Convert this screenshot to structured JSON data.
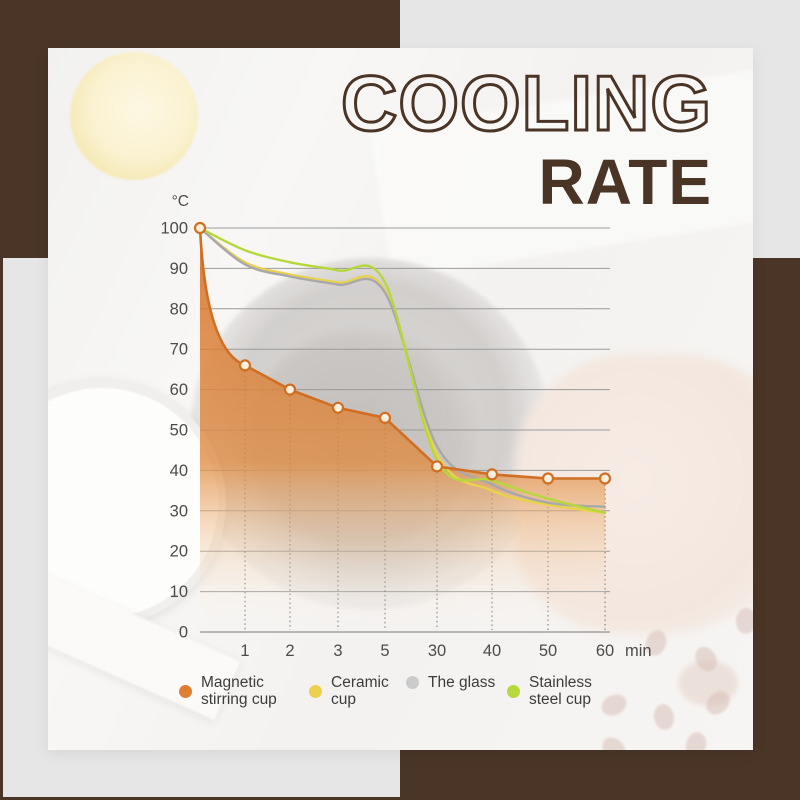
{
  "frame": {
    "background_color": "#e6e6e6",
    "accent_brown": "#4a3526",
    "card_background": "#f7f6f4"
  },
  "title": {
    "line1": "COOLING",
    "line2": "RATE",
    "color": "#4a3426"
  },
  "chart_data": {
    "type": "line",
    "title": "Cooling Rate",
    "grid": true,
    "legend_position": "bottom",
    "y_axis": {
      "unit_label": "°C",
      "min": 0,
      "max": 100,
      "step": 10,
      "tick_labels": [
        "0",
        "10",
        "20",
        "30",
        "40",
        "50",
        "60",
        "70",
        "80",
        "90",
        "100"
      ]
    },
    "x_axis": {
      "tick_labels": [
        "1",
        "2",
        "3",
        "5",
        "30",
        "40",
        "50",
        "60"
      ],
      "unit_label": "min"
    },
    "time_points_min": [
      0,
      1,
      2,
      3,
      5,
      30,
      40,
      50,
      60
    ],
    "series": [
      {
        "name": "Magnetic stirring cup",
        "color": "#d06f24",
        "marker": true,
        "marker_fill": "#faf0dd",
        "area": true,
        "smooth": false,
        "values": [
          100,
          66,
          60,
          55.5,
          53,
          41,
          39,
          38,
          38
        ]
      },
      {
        "name": "Ceramic cup",
        "color": "#e8d24c",
        "marker": false,
        "area": false,
        "smooth": true,
        "values": [
          100,
          91.5,
          88.5,
          86.5,
          84.5,
          44,
          35,
          31.5,
          29.5
        ]
      },
      {
        "name": "The glass",
        "color": "#a8a8ac",
        "marker": false,
        "area": false,
        "smooth": true,
        "values": [
          100,
          91,
          88,
          86,
          84,
          46,
          36.5,
          32,
          31
        ]
      },
      {
        "name": "Stainless steel cup",
        "color": "#b7d83c",
        "marker": false,
        "area": false,
        "smooth": true,
        "values": [
          100,
          94.5,
          91.5,
          89.5,
          86.5,
          42.5,
          37.5,
          33,
          29.5
        ]
      }
    ]
  },
  "legend": {
    "items": [
      {
        "label_line1": "Magnetic",
        "label_line2": "stirring cup",
        "color": "#dd8033"
      },
      {
        "label_line1": "Ceramic",
        "label_line2": "cup",
        "color": "#ecd04e"
      },
      {
        "label_line1": "The glass",
        "label_line2": "",
        "color": "#cbcbcb"
      },
      {
        "label_line1": "Stainless",
        "label_line2": "steel cup",
        "color": "#b8d83e"
      }
    ]
  }
}
